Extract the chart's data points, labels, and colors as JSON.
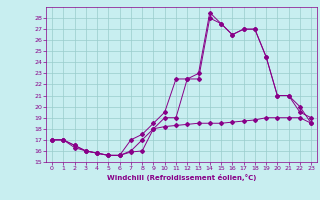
{
  "xlabel": "Windchill (Refroidissement éolien,°C)",
  "xlim": [
    -0.5,
    23.5
  ],
  "ylim": [
    15,
    29
  ],
  "yticks": [
    15,
    16,
    17,
    18,
    19,
    20,
    21,
    22,
    23,
    24,
    25,
    26,
    27,
    28
  ],
  "xticks": [
    0,
    1,
    2,
    3,
    4,
    5,
    6,
    7,
    8,
    9,
    10,
    11,
    12,
    13,
    14,
    15,
    16,
    17,
    18,
    19,
    20,
    21,
    22,
    23
  ],
  "bg_color": "#c8eef0",
  "line_color": "#880088",
  "grid_color": "#99cccc",
  "series1_x": [
    0,
    1,
    2,
    3,
    4,
    5,
    6,
    7,
    8,
    9,
    10,
    11,
    12,
    13,
    14,
    15,
    16,
    17,
    18,
    19,
    20,
    21,
    22,
    23
  ],
  "series1_y": [
    17,
    17,
    16.5,
    16,
    15.8,
    15.6,
    15.6,
    15.9,
    16.0,
    18.0,
    18.2,
    18.3,
    18.4,
    18.5,
    18.5,
    18.5,
    18.6,
    18.7,
    18.8,
    19.0,
    19.0,
    19.0,
    19.0,
    18.5
  ],
  "series2_x": [
    0,
    1,
    2,
    3,
    4,
    5,
    6,
    7,
    8,
    9,
    10,
    11,
    12,
    13,
    14,
    15,
    16,
    17,
    18,
    19,
    20,
    21,
    22,
    23
  ],
  "series2_y": [
    17,
    17,
    16.5,
    16,
    15.8,
    15.6,
    15.6,
    16.0,
    17.0,
    18.0,
    19.0,
    19.0,
    22.5,
    23.0,
    28.5,
    27.5,
    26.5,
    27.0,
    27.0,
    24.5,
    21.0,
    21.0,
    20.0,
    18.5
  ],
  "series3_x": [
    0,
    1,
    2,
    3,
    4,
    5,
    6,
    7,
    8,
    9,
    10,
    11,
    12,
    13,
    14,
    15,
    16,
    17,
    18,
    19,
    20,
    21,
    22,
    23
  ],
  "series3_y": [
    17,
    17,
    16.3,
    16,
    15.8,
    15.6,
    15.6,
    17.0,
    17.5,
    18.5,
    19.5,
    22.5,
    22.5,
    22.5,
    28.0,
    27.5,
    26.5,
    27.0,
    27.0,
    24.5,
    21.0,
    21.0,
    19.5,
    19.0
  ]
}
